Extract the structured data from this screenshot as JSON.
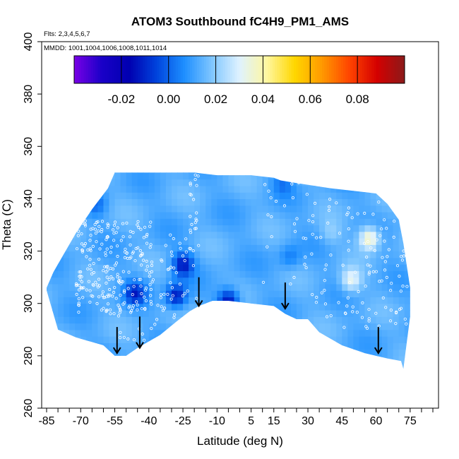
{
  "chart_data": {
    "type": "heatmap",
    "title": "ATOM3 Southbound fC4H9_PM1_AMS",
    "annotations": [
      "Flts: 2,3,4,5,6,7",
      "MMDD: 1001,1004,1006,1008,1011,1014"
    ],
    "xlabel": "Latitude (deg N)",
    "ylabel": "Theta (C)",
    "xlim": [
      -85,
      85
    ],
    "ylim": [
      260,
      400
    ],
    "xticks": [
      -85,
      -70,
      -55,
      -40,
      -25,
      -10,
      5,
      15,
      30,
      45,
      60,
      75
    ],
    "yticks": [
      260,
      280,
      300,
      320,
      340,
      360,
      380,
      400
    ],
    "colorbar": {
      "range": [
        -0.04,
        0.1
      ],
      "ticks": [
        -0.02,
        0.0,
        0.02,
        0.04,
        0.06,
        0.08
      ],
      "tick_labels": [
        "-0.02",
        "0.00",
        "0.02",
        "0.04",
        "0.06",
        "0.08"
      ],
      "colors": [
        "#7a00e6",
        "#1a00c8",
        "#0000b0",
        "#0044dd",
        "#1e8fff",
        "#7fc6ff",
        "#dff2ff",
        "#fff7a0",
        "#ffd700",
        "#ff9900",
        "#ff4400",
        "#d40000",
        "#8b1a1a"
      ]
    },
    "field": {
      "background_value": 0.013,
      "top_theta": [
        [
          -85,
          306
        ],
        [
          -82,
          312
        ],
        [
          -78,
          318
        ],
        [
          -72,
          327
        ],
        [
          -65,
          336
        ],
        [
          -58,
          344
        ],
        [
          -55,
          350
        ],
        [
          -50,
          350
        ],
        [
          -35,
          350
        ],
        [
          -20,
          350
        ],
        [
          -10,
          349
        ],
        [
          5,
          349
        ],
        [
          15,
          348
        ],
        [
          18,
          347
        ],
        [
          25,
          346
        ],
        [
          40,
          344
        ],
        [
          50,
          343
        ],
        [
          60,
          342
        ],
        [
          65,
          338
        ],
        [
          70,
          332
        ],
        [
          72,
          323
        ],
        [
          75,
          306
        ]
      ],
      "bottom_theta": [
        [
          -85,
          305
        ],
        [
          -80,
          290
        ],
        [
          -72,
          287
        ],
        [
          -60,
          284
        ],
        [
          -55,
          280
        ],
        [
          -50,
          280
        ],
        [
          -45,
          283
        ],
        [
          -35,
          288
        ],
        [
          -28,
          293
        ],
        [
          -22,
          297
        ],
        [
          -18,
          299
        ],
        [
          -12,
          301
        ],
        [
          -5,
          301
        ],
        [
          5,
          300
        ],
        [
          15,
          299
        ],
        [
          20,
          296
        ],
        [
          25,
          294
        ],
        [
          30,
          294
        ],
        [
          35,
          289
        ],
        [
          45,
          284
        ],
        [
          55,
          281
        ],
        [
          65,
          279
        ],
        [
          71,
          278
        ],
        [
          72,
          275
        ],
        [
          75,
          295
        ]
      ],
      "anomalies": [
        {
          "lat": -25,
          "theta": 315,
          "value": -0.012
        },
        {
          "lat": -28,
          "theta": 303,
          "value": -0.013
        },
        {
          "lat": -46,
          "theta": 304,
          "value": -0.009
        },
        {
          "lat": -5,
          "theta": 301,
          "value": -0.015
        },
        {
          "lat": -63,
          "theta": 338,
          "value": 0.003
        },
        {
          "lat": 49,
          "theta": 309,
          "value": 0.032
        },
        {
          "lat": 57,
          "theta": 325,
          "value": 0.04
        },
        {
          "lat": 22,
          "theta": 318,
          "value": 0.004
        },
        {
          "lat": 40,
          "theta": 327,
          "value": 0.02
        },
        {
          "lat": 19,
          "theta": 346,
          "value": 0.004
        }
      ],
      "sample_regions": [
        {
          "lat_range": [
            -72,
            -38
          ],
          "theta_range": [
            296,
            332
          ],
          "count": 240
        },
        {
          "lat_range": [
            -35,
            -18
          ],
          "theta_range": [
            300,
            330
          ],
          "count": 40
        },
        {
          "lat_range": [
            -22,
            -18
          ],
          "theta_range": [
            330,
            350
          ],
          "count": 15
        },
        {
          "lat_range": [
            -55,
            -20
          ],
          "theta_range": [
            285,
            300
          ],
          "count": 25
        },
        {
          "lat_range": [
            30,
            72
          ],
          "theta_range": [
            290,
            340
          ],
          "count": 85
        },
        {
          "lat_range": [
            10,
            30
          ],
          "theta_range": [
            300,
            347
          ],
          "count": 25
        },
        {
          "lat_range": [
            55,
            75
          ],
          "theta_range": [
            290,
            330
          ],
          "count": 30
        }
      ]
    },
    "arrows": [
      {
        "lat": -54,
        "theta": 286,
        "tip_theta": 281
      },
      {
        "lat": -44,
        "theta": 290,
        "tip_theta": 283
      },
      {
        "lat": -18,
        "theta": 305,
        "tip_theta": 299
      },
      {
        "lat": 20,
        "theta": 303,
        "tip_theta": 298
      },
      {
        "lat": 61,
        "theta": 286,
        "tip_theta": 281
      }
    ]
  }
}
